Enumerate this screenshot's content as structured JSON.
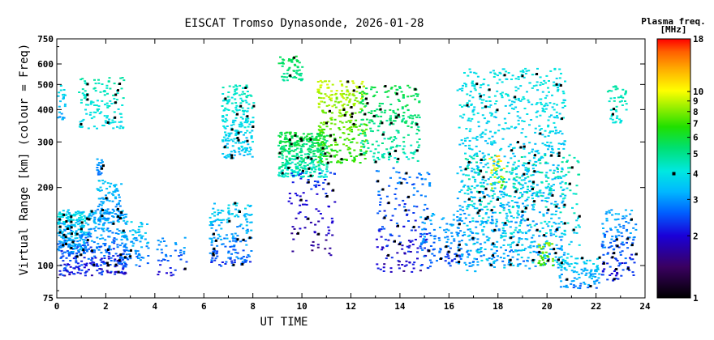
{
  "chart_data": {
    "type": "scatter",
    "title": "EISCAT Tromso Dynasonde, 2026-01-28",
    "xlabel": "UT TIME",
    "ylabel": "Virtual Range [km] (colour = Freq)",
    "xlim": [
      0,
      24
    ],
    "ylim": [
      75,
      750
    ],
    "yscale": "log",
    "xticks": [
      0,
      2,
      4,
      6,
      8,
      10,
      12,
      14,
      16,
      18,
      20,
      22,
      24
    ],
    "yticks": [
      75,
      100,
      200,
      300,
      400,
      500,
      600,
      750
    ],
    "colorbar": {
      "title_line1": "Plasma freq.",
      "title_line2": "[MHz]",
      "range": [
        1,
        18
      ],
      "ticks": [
        1,
        2,
        3,
        4,
        5,
        6,
        7,
        8,
        9,
        10,
        18
      ],
      "marker_value": 4
    },
    "clusters": [
      {
        "x0": 0.0,
        "x1": 2.8,
        "y0": 92,
        "y1": 165,
        "f0": 1.6,
        "f1": 3.6,
        "n": 420
      },
      {
        "x0": 0.0,
        "x1": 1.2,
        "y0": 110,
        "y1": 160,
        "f0": 2.4,
        "f1": 4.2,
        "n": 160
      },
      {
        "x0": 1.6,
        "x1": 2.6,
        "y0": 150,
        "y1": 215,
        "f0": 2.6,
        "f1": 3.6,
        "n": 90
      },
      {
        "x0": 2.5,
        "x1": 3.7,
        "y0": 100,
        "y1": 150,
        "f0": 2.2,
        "f1": 3.8,
        "n": 90
      },
      {
        "x0": 0.0,
        "x1": 0.3,
        "y0": 360,
        "y1": 500,
        "f0": 2.8,
        "f1": 4.0,
        "n": 25
      },
      {
        "x0": 0.8,
        "x1": 2.7,
        "y0": 340,
        "y1": 540,
        "f0": 3.5,
        "f1": 4.8,
        "n": 130
      },
      {
        "x0": 1.6,
        "x1": 1.9,
        "y0": 225,
        "y1": 260,
        "f0": 2.6,
        "f1": 3.2,
        "n": 20
      },
      {
        "x0": 4.0,
        "x1": 5.3,
        "y0": 92,
        "y1": 130,
        "f0": 1.8,
        "f1": 3.2,
        "n": 40
      },
      {
        "x0": 6.2,
        "x1": 7.9,
        "y0": 100,
        "y1": 175,
        "f0": 2.0,
        "f1": 3.8,
        "n": 180
      },
      {
        "x0": 6.7,
        "x1": 8.0,
        "y0": 260,
        "y1": 500,
        "f0": 3.0,
        "f1": 4.6,
        "n": 220
      },
      {
        "x0": 9.0,
        "x1": 11.0,
        "y0": 220,
        "y1": 330,
        "f0": 3.6,
        "f1": 6.2,
        "n": 380
      },
      {
        "x0": 9.0,
        "x1": 10.0,
        "y0": 520,
        "y1": 650,
        "f0": 4.5,
        "f1": 6.0,
        "n": 60
      },
      {
        "x0": 10.6,
        "x1": 12.6,
        "y0": 250,
        "y1": 520,
        "f0": 5.5,
        "f1": 9.5,
        "n": 300
      },
      {
        "x0": 12.3,
        "x1": 14.8,
        "y0": 250,
        "y1": 500,
        "f0": 4.0,
        "f1": 6.0,
        "n": 240
      },
      {
        "x0": 9.4,
        "x1": 11.3,
        "y0": 110,
        "y1": 230,
        "f0": 1.4,
        "f1": 2.4,
        "n": 90
      },
      {
        "x0": 13.0,
        "x1": 15.2,
        "y0": 95,
        "y1": 240,
        "f0": 1.5,
        "f1": 3.0,
        "n": 170
      },
      {
        "x0": 14.8,
        "x1": 16.4,
        "y0": 98,
        "y1": 160,
        "f0": 2.0,
        "f1": 3.4,
        "n": 110
      },
      {
        "x0": 16.3,
        "x1": 20.7,
        "y0": 100,
        "y1": 580,
        "f0": 2.5,
        "f1": 4.2,
        "n": 900
      },
      {
        "x0": 16.6,
        "x1": 21.3,
        "y0": 95,
        "y1": 270,
        "f0": 2.8,
        "f1": 5.0,
        "n": 380
      },
      {
        "x0": 17.6,
        "x1": 18.2,
        "y0": 200,
        "y1": 270,
        "f0": 6.0,
        "f1": 12.0,
        "n": 25
      },
      {
        "x0": 19.6,
        "x1": 20.2,
        "y0": 100,
        "y1": 125,
        "f0": 6.0,
        "f1": 9.0,
        "n": 35
      },
      {
        "x0": 20.4,
        "x1": 22.1,
        "y0": 82,
        "y1": 110,
        "f0": 2.4,
        "f1": 4.0,
        "n": 100
      },
      {
        "x0": 22.2,
        "x1": 23.6,
        "y0": 88,
        "y1": 165,
        "f0": 1.6,
        "f1": 3.4,
        "n": 140
      },
      {
        "x0": 22.4,
        "x1": 23.2,
        "y0": 350,
        "y1": 500,
        "f0": 3.8,
        "f1": 4.8,
        "n": 45
      }
    ]
  }
}
